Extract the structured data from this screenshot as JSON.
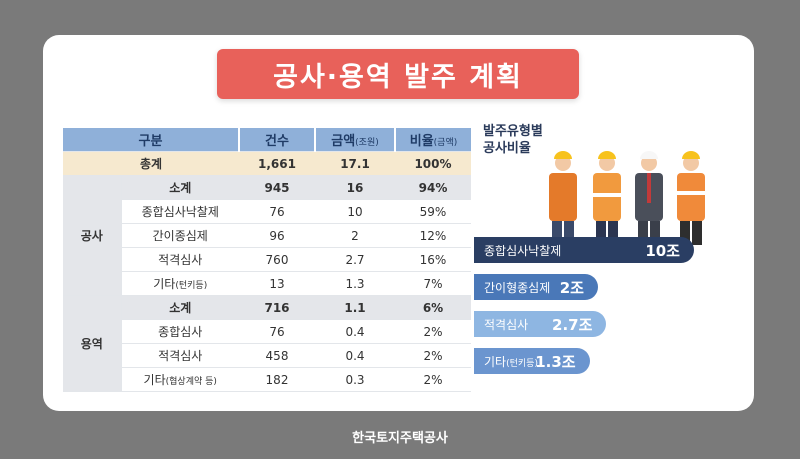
{
  "title": "공사·용역 발주 계획",
  "table": {
    "headers": [
      {
        "main": "구분",
        "sub": ""
      },
      {
        "main": "건수",
        "sub": ""
      },
      {
        "main": "금액",
        "sub": "(조원)"
      },
      {
        "main": "비율",
        "sub": "(금액)"
      }
    ],
    "total": {
      "label": "총계",
      "count": "1,661",
      "amount": "17.1",
      "ratio": "100%"
    },
    "groups": [
      {
        "name": "공사",
        "rows": [
          {
            "label": "소계",
            "label_sub": "",
            "count": "945",
            "amount": "16",
            "ratio": "94%",
            "sub": true
          },
          {
            "label": "종합심사낙찰제",
            "label_sub": "",
            "count": "76",
            "amount": "10",
            "ratio": "59%"
          },
          {
            "label": "간이종심제",
            "label_sub": "",
            "count": "96",
            "amount": "2",
            "ratio": "12%"
          },
          {
            "label": "적격심사",
            "label_sub": "",
            "count": "760",
            "amount": "2.7",
            "ratio": "16%"
          },
          {
            "label": "기타",
            "label_sub": "(턴키등)",
            "count": "13",
            "amount": "1.3",
            "ratio": "7%"
          }
        ]
      },
      {
        "name": "용역",
        "rows": [
          {
            "label": "소계",
            "label_sub": "",
            "count": "716",
            "amount": "1.1",
            "ratio": "6%",
            "sub": true
          },
          {
            "label": "종합심사",
            "label_sub": "",
            "count": "76",
            "amount": "0.4",
            "ratio": "2%"
          },
          {
            "label": "적격심사",
            "label_sub": "",
            "count": "458",
            "amount": "0.4",
            "ratio": "2%"
          },
          {
            "label": "기타",
            "label_sub": "(협상계약 등)",
            "count": "182",
            "amount": "0.3",
            "ratio": "2%"
          }
        ]
      }
    ]
  },
  "side_title": [
    "발주유형별",
    "공사비율"
  ],
  "chart_data": {
    "type": "bar",
    "title": "발주유형별 공사비율",
    "categories": [
      "종합심사낙찰제",
      "간이형종심제",
      "적격심사",
      "기타(턴키등)"
    ],
    "category_main": [
      "종합심사낙찰제",
      "간이형종심제",
      "적격심사",
      "기타"
    ],
    "category_sub": [
      "",
      "",
      "",
      "(턴키등)"
    ],
    "values": [
      10,
      2,
      2.7,
      1.3
    ],
    "value_labels": [
      "10조",
      "2조",
      "2.7조",
      "1.3조"
    ],
    "colors": [
      "#2a3e63",
      "#4a78b8",
      "#8eb6e2",
      "#6b95cf"
    ]
  },
  "footer": "한국토지주택공사"
}
